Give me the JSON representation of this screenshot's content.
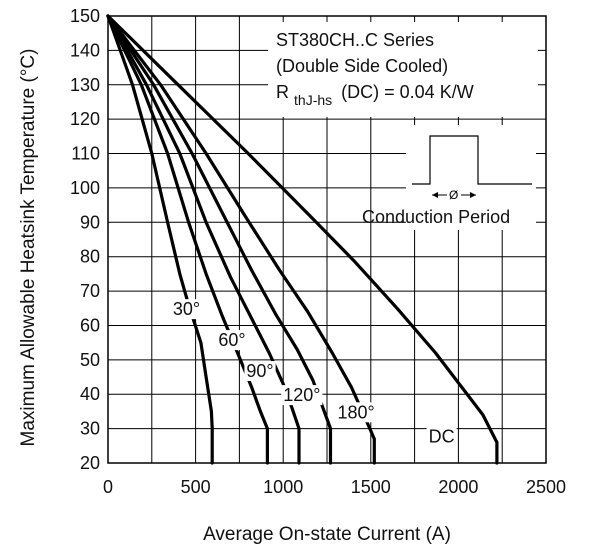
{
  "chart_data": {
    "type": "line",
    "title": "",
    "xlabel": "Average On-state Current (A)",
    "ylabel": "Maximum Allowable Heatsink Temperature (°C)",
    "xlim": [
      0,
      2500
    ],
    "ylim": [
      20,
      150
    ],
    "xticks": [
      0,
      500,
      1000,
      1500,
      2000,
      2500
    ],
    "yticks": [
      20,
      30,
      40,
      50,
      60,
      70,
      80,
      90,
      100,
      110,
      120,
      130,
      140,
      150
    ],
    "x_grid_step": 250,
    "grid": true,
    "series": [
      {
        "name": "30°",
        "points": [
          [
            0,
            150
          ],
          [
            140,
            130
          ],
          [
            250,
            110
          ],
          [
            340,
            90
          ],
          [
            410,
            75
          ],
          [
            460,
            66
          ],
          [
            530,
            55
          ],
          [
            560,
            45
          ],
          [
            590,
            35
          ],
          [
            595,
            30
          ],
          [
            595,
            20
          ]
        ]
      },
      {
        "name": "60°",
        "points": [
          [
            0,
            150
          ],
          [
            190,
            130
          ],
          [
            340,
            110
          ],
          [
            460,
            90
          ],
          [
            560,
            75
          ],
          [
            650,
            63
          ],
          [
            740,
            52
          ],
          [
            820,
            42
          ],
          [
            870,
            35
          ],
          [
            910,
            30
          ],
          [
            910,
            20
          ]
        ]
      },
      {
        "name": "90°",
        "points": [
          [
            0,
            150
          ],
          [
            220,
            130
          ],
          [
            410,
            110
          ],
          [
            560,
            90
          ],
          [
            700,
            74
          ],
          [
            820,
            62
          ],
          [
            920,
            52
          ],
          [
            1000,
            43
          ],
          [
            1050,
            36
          ],
          [
            1090,
            30
          ],
          [
            1090,
            20
          ]
        ]
      },
      {
        "name": "120°",
        "points": [
          [
            0,
            150
          ],
          [
            260,
            130
          ],
          [
            480,
            110
          ],
          [
            660,
            92
          ],
          [
            820,
            76
          ],
          [
            960,
            63
          ],
          [
            1080,
            53
          ],
          [
            1170,
            44
          ],
          [
            1220,
            37
          ],
          [
            1270,
            30
          ],
          [
            1270,
            20
          ]
        ]
      },
      {
        "name": "180°",
        "points": [
          [
            0,
            150
          ],
          [
            300,
            130
          ],
          [
            560,
            110
          ],
          [
            780,
            92
          ],
          [
            980,
            76
          ],
          [
            1140,
            64
          ],
          [
            1280,
            52
          ],
          [
            1390,
            42
          ],
          [
            1460,
            34
          ],
          [
            1520,
            27
          ],
          [
            1520,
            20
          ]
        ]
      },
      {
        "name": "DC",
        "points": [
          [
            0,
            150
          ],
          [
            400,
            130
          ],
          [
            800,
            110
          ],
          [
            1150,
            92
          ],
          [
            1400,
            79
          ],
          [
            1650,
            65
          ],
          [
            1870,
            52
          ],
          [
            2020,
            42
          ],
          [
            2140,
            34
          ],
          [
            2220,
            26
          ],
          [
            2220,
            20
          ]
        ]
      }
    ],
    "annotations": {
      "series_title_line1": "ST380CH..C Series",
      "series_title_line2": "(Double Side Cooled)",
      "rth_main": "R",
      "rth_sub": "thJ-hs",
      "rth_rest": "(DC) = 0.04 K/W",
      "conduction_label": "Conduction Period",
      "phi_label": "Ø"
    }
  }
}
